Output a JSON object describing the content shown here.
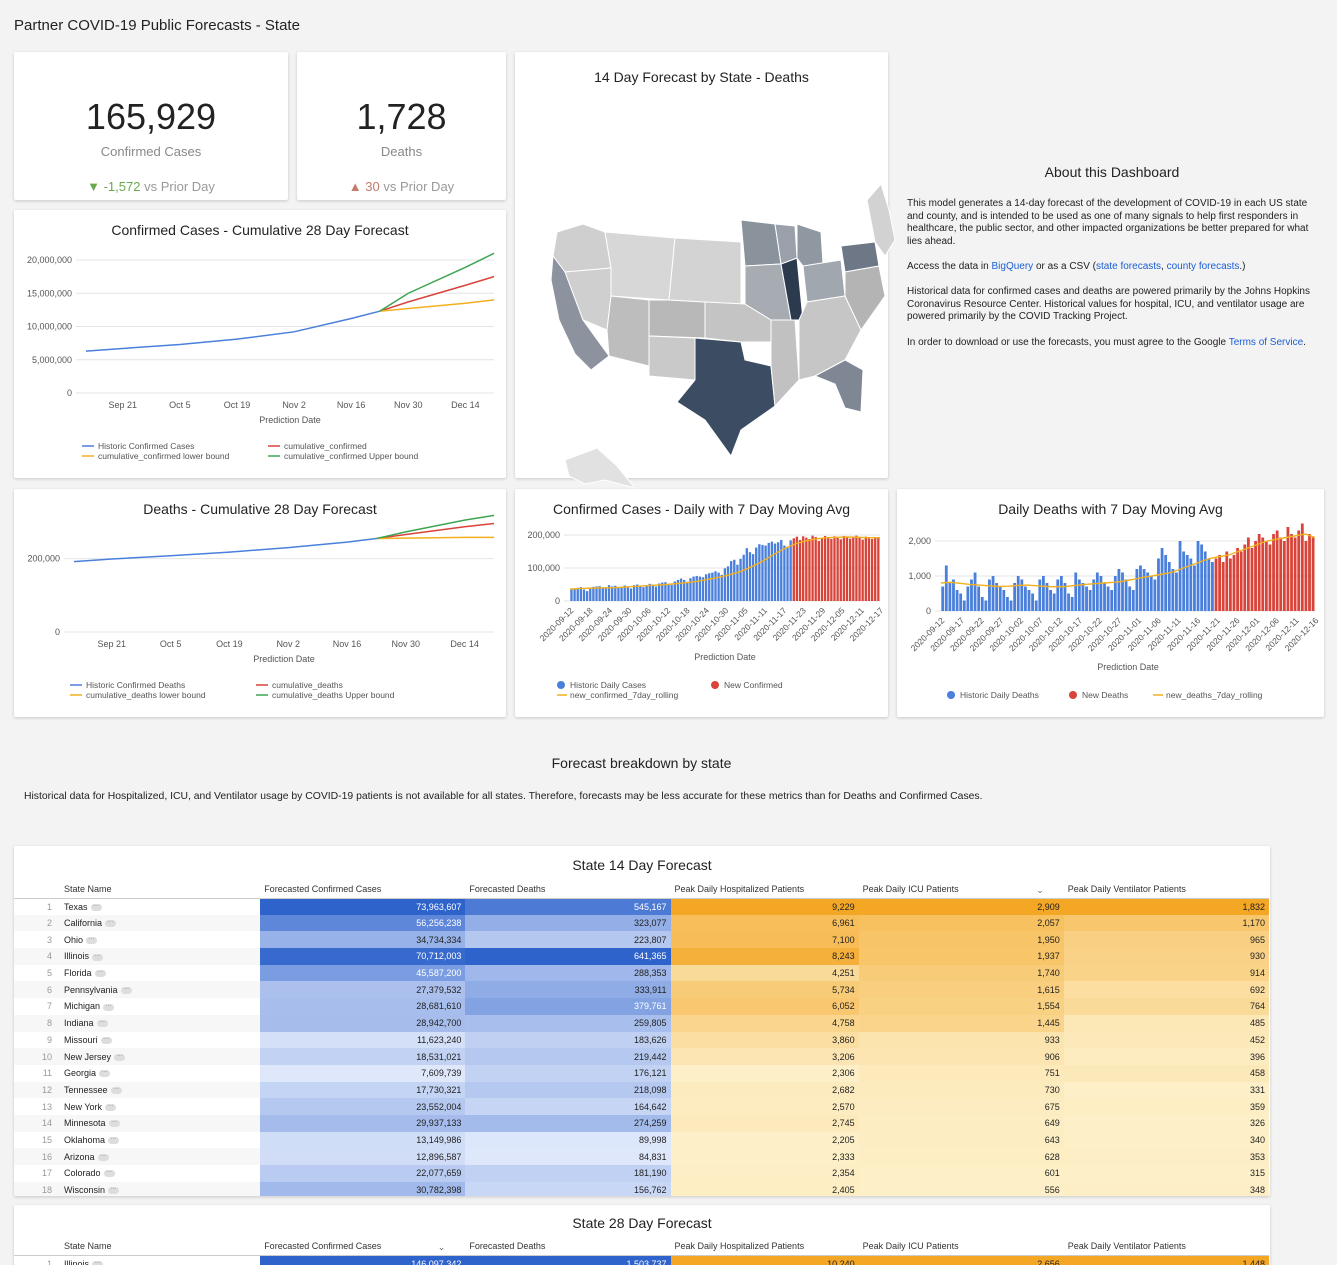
{
  "page": {
    "title": "Partner COVID-19 Public Forecasts - State"
  },
  "kpis": {
    "confirmed": {
      "value": "165,929",
      "label": "Confirmed Cases",
      "delta_icon": "▼",
      "delta": "-1,572",
      "delta_suffix": "vs Prior Day"
    },
    "deaths": {
      "value": "1,728",
      "label": "Deaths",
      "delta_icon": "▲",
      "delta": "30",
      "delta_suffix": "vs Prior Day"
    }
  },
  "map": {
    "title": "14 Day Forecast by State - Deaths"
  },
  "about": {
    "title": "About this Dashboard",
    "p1": "This model generates a 14-day forecast of the development of COVID-19 in each US state and county, and is intended to be used as one of many signals to help first responders in healthcare, the public sector, and other impacted organizations be better prepared for what lies ahead.",
    "p2_pre": "Access the data in ",
    "p2_link1": "BigQuery",
    "p2_mid": " or as a CSV (",
    "p2_link2": "state forecasts",
    "p2_sep": ", ",
    "p2_link3": "county forecasts",
    "p2_post": ".)",
    "p3": "Historical data for confirmed cases and deaths are powered primarily by the Johns Hopkins Coronavirus Resource Center. Historical values for hospital, ICU, and ventilator usage are powered primarily by the COVID Tracking Project.",
    "p4_pre": "In order to download or use the forecasts, you must agree to the Google ",
    "p4_link": "Terms of Service",
    "p4_post": "."
  },
  "chart_data": [
    {
      "type": "line",
      "title": "Confirmed Cases - Cumulative 28 Day Forecast",
      "xlabel": "Prediction Date",
      "ylabel": "",
      "x_ticks": [
        "Sep 21",
        "Oct 5",
        "Oct 19",
        "Nov 2",
        "Nov 16",
        "Nov 30",
        "Dec 14"
      ],
      "y_ticks": [
        "20,000,000",
        "15,000,000",
        "10,000,000",
        "5,000,000",
        "0"
      ],
      "ylim": [
        0,
        20000000
      ],
      "legend": "bottom",
      "series": [
        {
          "name": "Historic Confirmed Cases",
          "color": "#4a7fdc",
          "x": [
            "2020-09-12",
            "2020-09-21",
            "2020-10-05",
            "2020-10-19",
            "2020-11-02",
            "2020-11-16",
            "2020-11-23"
          ],
          "values": [
            6300000,
            6700000,
            7300000,
            8100000,
            9200000,
            11200000,
            12300000
          ]
        },
        {
          "name": "cumulative_confirmed",
          "color": "#d9443a",
          "x": [
            "2020-11-23",
            "2020-11-30",
            "2020-12-14",
            "2020-12-21"
          ],
          "values": [
            12300000,
            13700000,
            16200000,
            17500000
          ]
        },
        {
          "name": "cumulative_confirmed lower bound",
          "color": "#f2b01e",
          "x": [
            "2020-11-23",
            "2020-11-30",
            "2020-12-14",
            "2020-12-21"
          ],
          "values": [
            12300000,
            12700000,
            13500000,
            14000000
          ]
        },
        {
          "name": "cumulative_confirmed Upper bound",
          "color": "#3fa452",
          "x": [
            "2020-11-23",
            "2020-11-30",
            "2020-12-14",
            "2020-12-21"
          ],
          "values": [
            12300000,
            15000000,
            18900000,
            21000000
          ]
        }
      ]
    },
    {
      "type": "line",
      "title": "Deaths - Cumulative 28 Day Forecast",
      "xlabel": "Prediction Date",
      "ylabel": "",
      "x_ticks": [
        "Sep 21",
        "Oct 5",
        "Oct 19",
        "Nov 2",
        "Nov 16",
        "Nov 30",
        "Dec 14"
      ],
      "y_ticks": [
        "200,000",
        "0"
      ],
      "ylim": [
        0,
        300000
      ],
      "legend": "bottom",
      "series": [
        {
          "name": "Historic Confirmed Deaths",
          "color": "#4a7fdc",
          "x": [
            "2020-09-12",
            "2020-09-21",
            "2020-10-05",
            "2020-10-19",
            "2020-11-02",
            "2020-11-16",
            "2020-11-23"
          ],
          "values": [
            192000,
            199000,
            208000,
            218000,
            230000,
            245000,
            255000
          ]
        },
        {
          "name": "cumulative_deaths",
          "color": "#d9443a",
          "x": [
            "2020-11-23",
            "2020-11-30",
            "2020-12-14",
            "2020-12-21"
          ],
          "values": [
            255000,
            266000,
            287000,
            296000
          ]
        },
        {
          "name": "cumulative_deaths lower bound",
          "color": "#f2b01e",
          "x": [
            "2020-11-23",
            "2020-11-30",
            "2020-12-14",
            "2020-12-21"
          ],
          "values": [
            255000,
            256000,
            258000,
            258000
          ]
        },
        {
          "name": "cumulative_deaths Upper bound",
          "color": "#3fa452",
          "x": [
            "2020-11-23",
            "2020-11-30",
            "2020-12-14",
            "2020-12-21"
          ],
          "values": [
            255000,
            273000,
            305000,
            318000
          ]
        }
      ]
    },
    {
      "type": "bar",
      "title": "Confirmed Cases - Daily with 7 Day Moving Avg",
      "xlabel": "Prediction Date",
      "x_ticks": [
        "2020-09-12",
        "2020-09-18",
        "2020-09-24",
        "2020-09-30",
        "2020-10-06",
        "2020-10-12",
        "2020-10-18",
        "2020-10-24",
        "2020-10-30",
        "2020-11-05",
        "2020-11-11",
        "2020-11-17",
        "2020-11-23",
        "2020-11-29",
        "2020-12-05",
        "2020-12-11",
        "2020-12-17"
      ],
      "y_ticks": [
        "200,000",
        "100,000",
        "0"
      ],
      "ylim": [
        0,
        200000
      ],
      "legend": "bottom",
      "series": [
        {
          "name": "Historic Daily Cases",
          "color": "#4a7fdc",
          "values": [
            38000,
            36000,
            40000,
            42000,
            35000,
            30000,
            39000,
            43000,
            44000,
            45000,
            41000,
            38000,
            48000,
            44000,
            46000,
            40000,
            43000,
            47000,
            43000,
            38000,
            48000,
            50000,
            45000,
            42000,
            47000,
            52000,
            50000,
            44000,
            53000,
            56000,
            57000,
            50000,
            49000,
            59000,
            64000,
            68000,
            64000,
            58000,
            69000,
            74000,
            76000,
            74000,
            72000,
            81000,
            84000,
            86000,
            90000,
            86000,
            79000,
            99000,
            105000,
            121000,
            125000,
            110000,
            128000,
            140000,
            160000,
            148000,
            142000,
            162000,
            172000,
            170000,
            168000,
            176000,
            180000,
            174000,
            178000,
            185000,
            168000,
            162000,
            184000
          ]
        },
        {
          "name": "New Confirmed",
          "color": "#d9443a",
          "values": [
            190000,
            195000,
            185000,
            196000,
            192000,
            188000,
            198000,
            194000,
            182000,
            190000,
            197000,
            193000,
            188000,
            196000,
            191000,
            187000,
            197000,
            194000,
            189000,
            193000,
            198000,
            192000,
            186000,
            195000,
            190000,
            188000,
            194000,
            191000
          ]
        },
        {
          "name": "new_confirmed_7day_rolling",
          "color": "#f2b01e",
          "values": [
            36000,
            38000,
            39000,
            40000,
            40000,
            42000,
            44000,
            46000,
            48000,
            50000,
            53000,
            56000,
            60000,
            66000,
            72000,
            80000,
            90000,
            104000,
            120000,
            140000,
            158000,
            172000,
            182000,
            188000,
            192000,
            193000,
            194000,
            193000,
            192000,
            192000
          ]
        }
      ]
    },
    {
      "type": "bar",
      "title": "Daily Deaths with 7 Day Moving Avg",
      "xlabel": "Prediction Date",
      "x_ticks": [
        "2020-09-12",
        "2020-09-17",
        "2020-09-22",
        "2020-09-27",
        "2020-10-02",
        "2020-10-07",
        "2020-10-12",
        "2020-10-17",
        "2020-10-22",
        "2020-10-27",
        "2020-11-01",
        "2020-11-06",
        "2020-11-11",
        "2020-11-16",
        "2020-11-21",
        "2020-11-26",
        "2020-12-01",
        "2020-12-06",
        "2020-12-11",
        "2020-12-16"
      ],
      "y_ticks": [
        "2,000",
        "1,000",
        "0"
      ],
      "ylim": [
        0,
        2600
      ],
      "legend": "bottom",
      "series": [
        {
          "name": "Historic Daily Deaths",
          "color": "#4a7fdc",
          "values": [
            700,
            1300,
            800,
            900,
            600,
            500,
            300,
            700,
            900,
            1100,
            700,
            400,
            300,
            900,
            1000,
            800,
            700,
            600,
            400,
            300,
            800,
            1000,
            900,
            700,
            600,
            500,
            300,
            900,
            1000,
            800,
            600,
            500,
            900,
            1000,
            800,
            500,
            400,
            1100,
            900,
            800,
            700,
            600,
            900,
            1100,
            1000,
            800,
            700,
            600,
            1000,
            1200,
            1100,
            900,
            700,
            600,
            1200,
            1300,
            1200,
            1100,
            1000,
            900,
            1500,
            1800,
            1600,
            1400,
            1200,
            1100,
            2000,
            1700,
            1600,
            1500,
            1300,
            2000,
            1900,
            1700,
            1500,
            1400
          ]
        },
        {
          "name": "New Deaths",
          "color": "#d9443a",
          "values": [
            1500,
            1600,
            1400,
            1700,
            1500,
            1600,
            1800,
            1700,
            1900,
            2100,
            1800,
            2000,
            2200,
            2100,
            2000,
            1900,
            2200,
            2300,
            2100,
            2000,
            2400,
            2200,
            2100,
            2300,
            2500,
            2000,
            2200,
            2100
          ]
        },
        {
          "name": "new_deaths_7day_rolling",
          "color": "#f2b01e",
          "values": [
            800,
            820,
            790,
            760,
            740,
            720,
            700,
            710,
            730,
            740,
            720,
            700,
            690,
            700,
            730,
            760,
            780,
            800,
            820,
            850,
            900,
            960,
            1000,
            1050,
            1100,
            1200,
            1300,
            1400,
            1500,
            1550,
            1600,
            1700,
            1800,
            1900,
            2000,
            2050,
            2100,
            2150,
            2200,
            2100
          ]
        }
      ]
    }
  ],
  "breakdown": {
    "title": "Forecast breakdown by state",
    "note": "Historical data for Hospitalized, ICU, and Ventilator usage by COVID-19 patients is not available for all states. Therefore, forecasts may be less accurate for these metrics than for Deaths and Confirmed Cases."
  },
  "table14": {
    "title": "State 14 Day Forecast",
    "columns": [
      "State Name",
      "Forecasted Confirmed Cases",
      "Forecasted Deaths",
      "Peak Daily Hospitalized Patients",
      "Peak Daily ICU Patients",
      "Peak Daily Ventilator Patients"
    ],
    "rows": [
      [
        "1",
        "Texas",
        "73,963,607",
        "545,167",
        "9,229",
        "2,909",
        "1,832"
      ],
      [
        "2",
        "California",
        "56,256,238",
        "323,077",
        "6,961",
        "2,057",
        "1,170"
      ],
      [
        "3",
        "Ohio",
        "34,734,334",
        "223,807",
        "7,100",
        "1,950",
        "965"
      ],
      [
        "4",
        "Illinois",
        "70,712,003",
        "641,365",
        "8,243",
        "1,937",
        "930"
      ],
      [
        "5",
        "Florida",
        "45,587,200",
        "288,353",
        "4,251",
        "1,740",
        "914"
      ],
      [
        "6",
        "Pennsylvania",
        "27,379,532",
        "333,911",
        "5,734",
        "1,615",
        "692"
      ],
      [
        "7",
        "Michigan",
        "28,681,610",
        "379,761",
        "6,052",
        "1,554",
        "764"
      ],
      [
        "8",
        "Indiana",
        "28,942,700",
        "259,805",
        "4,758",
        "1,445",
        "485"
      ],
      [
        "9",
        "Missouri",
        "11,623,240",
        "183,626",
        "3,860",
        "933",
        "452"
      ],
      [
        "10",
        "New Jersey",
        "18,531,021",
        "219,442",
        "3,206",
        "906",
        "396"
      ],
      [
        "11",
        "Georgia",
        "7,609,739",
        "176,121",
        "2,306",
        "751",
        "458"
      ],
      [
        "12",
        "Tennessee",
        "17,730,321",
        "218,098",
        "2,682",
        "730",
        "331"
      ],
      [
        "13",
        "New York",
        "23,552,004",
        "164,642",
        "2,570",
        "675",
        "359"
      ],
      [
        "14",
        "Minnesota",
        "29,937,133",
        "274,259",
        "2,745",
        "649",
        "326"
      ],
      [
        "15",
        "Oklahoma",
        "13,149,986",
        "89,998",
        "2,205",
        "643",
        "340"
      ],
      [
        "16",
        "Arizona",
        "12,896,587",
        "84,831",
        "2,333",
        "628",
        "353"
      ],
      [
        "17",
        "Colorado",
        "22,077,659",
        "181,190",
        "2,354",
        "601",
        "315"
      ],
      [
        "18",
        "Wisconsin",
        "30,782,398",
        "156,762",
        "2,405",
        "556",
        "348"
      ]
    ]
  },
  "table28": {
    "title": "State 28 Day Forecast",
    "columns": [
      "State Name",
      "Forecasted Confirmed Cases",
      "Forecasted Deaths",
      "Peak Daily Hospitalized Patients",
      "Peak Daily ICU Patients",
      "Peak Daily Ventilator Patients"
    ],
    "rows": [
      [
        "1",
        "Illinois",
        "146,097,342",
        "1,503,737",
        "10,240",
        "2,656",
        "1,448"
      ]
    ]
  },
  "colors": {
    "blue_dark": "#2f63cc",
    "blue_light": "#dfe8fb",
    "orange_dark": "#f4a625",
    "orange_light": "#fdf0c9",
    "map_dark": "#3b4c63",
    "map_light": "#dcdcdc"
  }
}
